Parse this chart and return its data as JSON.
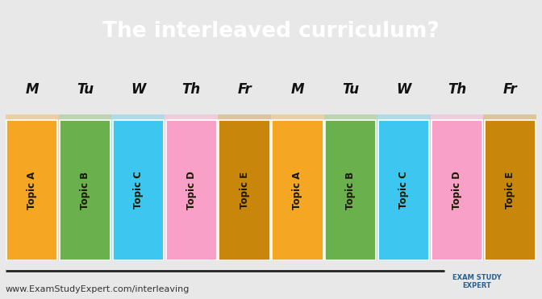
{
  "title": "The interleaved curriculum?",
  "title_color": "#ffffff",
  "title_bg_color": "#0d1b3e",
  "bg_color": "#e8e8e8",
  "days": [
    "M",
    "Tu",
    "W",
    "Th",
    "Fr",
    "M",
    "Tu",
    "W",
    "Th",
    "Fr"
  ],
  "topics": [
    "Topic A",
    "Topic B",
    "Topic C",
    "Topic D",
    "Topic E",
    "Topic A",
    "Topic B",
    "Topic C",
    "Topic D",
    "Topic E"
  ],
  "bar_colors": [
    "#f5a623",
    "#6ab04c",
    "#3dc6ef",
    "#f8a0c8",
    "#c8860a",
    "#f5a623",
    "#6ab04c",
    "#3dc6ef",
    "#f8a0c8",
    "#c8860a"
  ],
  "bg_strip_colors": [
    "#f5a623",
    "#6ab04c",
    "#3dc6ef",
    "#f8a0c8",
    "#c8860a",
    "#f5a623",
    "#6ab04c",
    "#3dc6ef",
    "#f8a0c8",
    "#c8860a"
  ],
  "text_colors": [
    "#1a1a00",
    "#1a1a00",
    "#1a1a00",
    "#1a1a00",
    "#1a1a00",
    "#1a1a00",
    "#1a1a00",
    "#1a1a00",
    "#1a1a00",
    "#1a1a00"
  ],
  "footer_text": "www.ExamStudyExpert.com/interleaving",
  "footer_color": "#333333",
  "day_label_color": "#111111"
}
